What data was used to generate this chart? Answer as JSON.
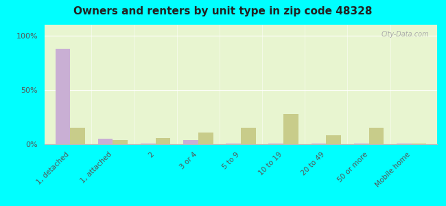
{
  "title": "Owners and renters by unit type in zip code 48328",
  "categories": [
    "1, detached",
    "1, attached",
    "2",
    "3 or 4",
    "5 to 9",
    "10 to 19",
    "20 to 49",
    "50 or more",
    "Mobile home"
  ],
  "owner_values": [
    88,
    5,
    0.5,
    4,
    0.5,
    0.5,
    0.5,
    0.5,
    0.5
  ],
  "renter_values": [
    15,
    4,
    6,
    11,
    15,
    28,
    8,
    15,
    0.5
  ],
  "owner_color": "#c9afd4",
  "renter_color": "#c8cc8a",
  "background_color": "#e8f5d0",
  "outer_background": "#00ffff",
  "yticks": [
    0,
    50,
    100
  ],
  "ylabels": [
    "0%",
    "50%",
    "100%"
  ],
  "bar_width": 0.35
}
